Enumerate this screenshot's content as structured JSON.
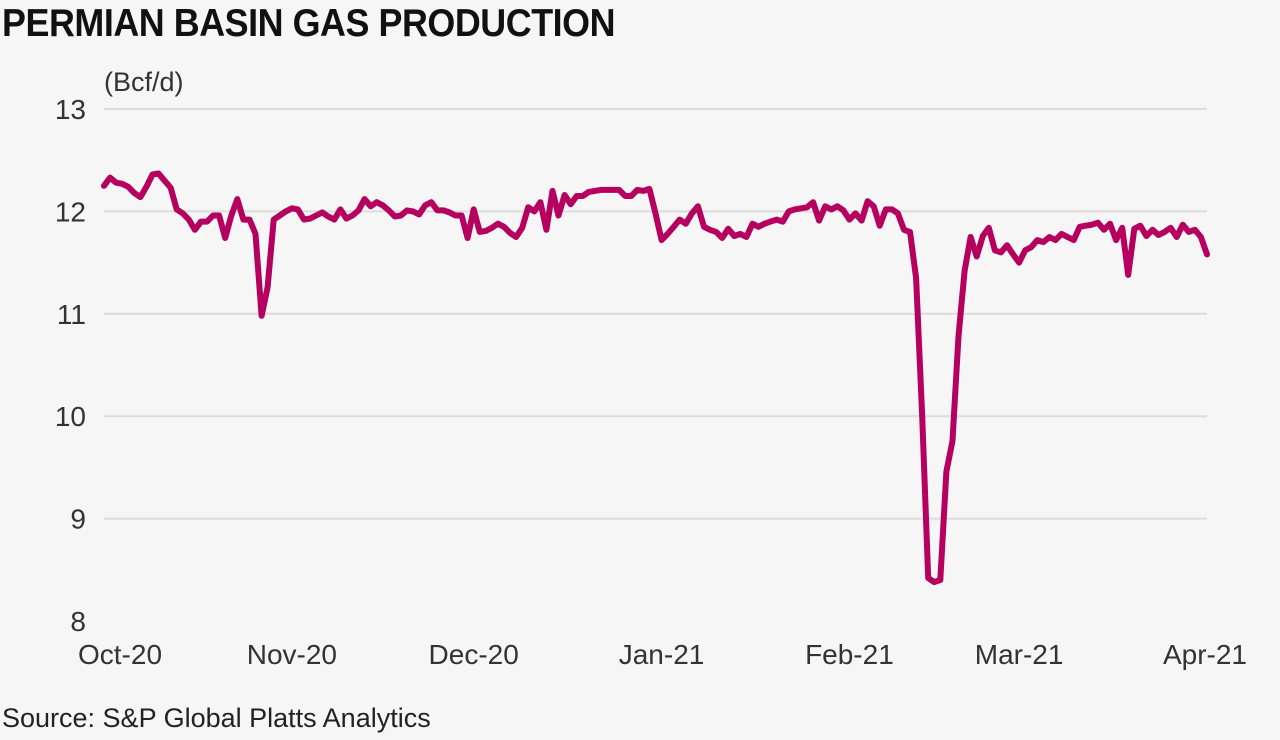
{
  "title": "PERMIAN BASIN GAS PRODUCTION",
  "source": "Source: S&P Global Platts Analytics",
  "colors": {
    "line": "#b5005f",
    "grid": "#dcdcdc",
    "text": "#333333"
  },
  "chart_data": {
    "type": "line",
    "title": "PERMIAN BASIN GAS PRODUCTION",
    "ylabel": "(Bcf/d)",
    "xlabel": "",
    "ylim": [
      8,
      13
    ],
    "yticks": [
      8,
      9,
      10,
      11,
      12,
      13
    ],
    "xlim": [
      "2020-10-01",
      "2021-04-01"
    ],
    "xticks": [
      {
        "label": "Oct-20",
        "date": "2020-10-01"
      },
      {
        "label": "Nov-20",
        "date": "2020-11-01"
      },
      {
        "label": "Dec-20",
        "date": "2020-12-01"
      },
      {
        "label": "Jan-21",
        "date": "2021-01-01"
      },
      {
        "label": "Feb-21",
        "date": "2021-02-01"
      },
      {
        "label": "Mar-21",
        "date": "2021-03-01"
      },
      {
        "label": "Apr-21",
        "date": "2021-04-01"
      }
    ],
    "grid": true,
    "series": [
      {
        "points": [
          [
            "2020-10-01",
            12.25
          ],
          [
            "2020-10-02",
            12.33
          ],
          [
            "2020-10-03",
            12.28
          ],
          [
            "2020-10-04",
            12.27
          ],
          [
            "2020-10-05",
            12.24
          ],
          [
            "2020-10-06",
            12.18
          ],
          [
            "2020-10-07",
            12.14
          ],
          [
            "2020-10-08",
            12.24
          ],
          [
            "2020-10-09",
            12.36
          ],
          [
            "2020-10-10",
            12.37
          ],
          [
            "2020-10-11",
            12.3
          ],
          [
            "2020-10-12",
            12.23
          ],
          [
            "2020-10-13",
            12.02
          ],
          [
            "2020-10-14",
            11.98
          ],
          [
            "2020-10-15",
            11.92
          ],
          [
            "2020-10-16",
            11.82
          ],
          [
            "2020-10-17",
            11.9
          ],
          [
            "2020-10-18",
            11.9
          ],
          [
            "2020-10-19",
            11.96
          ],
          [
            "2020-10-20",
            11.96
          ],
          [
            "2020-10-21",
            11.74
          ],
          [
            "2020-10-22",
            11.96
          ],
          [
            "2020-10-23",
            12.12
          ],
          [
            "2020-10-24",
            11.92
          ],
          [
            "2020-10-25",
            11.92
          ],
          [
            "2020-10-26",
            11.78
          ],
          [
            "2020-10-27",
            10.98
          ],
          [
            "2020-10-28",
            11.26
          ],
          [
            "2020-10-29",
            11.92
          ],
          [
            "2020-10-30",
            11.96
          ],
          [
            "2020-10-31",
            12.0
          ],
          [
            "2020-11-01",
            12.03
          ],
          [
            "2020-11-02",
            12.02
          ],
          [
            "2020-11-03",
            11.92
          ],
          [
            "2020-11-04",
            11.93
          ],
          [
            "2020-11-05",
            11.96
          ],
          [
            "2020-11-06",
            11.99
          ],
          [
            "2020-11-07",
            11.95
          ],
          [
            "2020-11-08",
            11.92
          ],
          [
            "2020-11-09",
            12.02
          ],
          [
            "2020-11-10",
            11.93
          ],
          [
            "2020-11-11",
            11.96
          ],
          [
            "2020-11-12",
            12.01
          ],
          [
            "2020-11-13",
            12.12
          ],
          [
            "2020-11-14",
            12.05
          ],
          [
            "2020-11-15",
            12.09
          ],
          [
            "2020-11-16",
            12.06
          ],
          [
            "2020-11-17",
            12.01
          ],
          [
            "2020-11-18",
            11.95
          ],
          [
            "2020-11-19",
            11.96
          ],
          [
            "2020-11-20",
            12.01
          ],
          [
            "2020-11-21",
            12.0
          ],
          [
            "2020-11-22",
            11.97
          ],
          [
            "2020-11-23",
            12.06
          ],
          [
            "2020-11-24",
            12.09
          ],
          [
            "2020-11-25",
            12.01
          ],
          [
            "2020-11-26",
            12.01
          ],
          [
            "2020-11-27",
            11.99
          ],
          [
            "2020-11-28",
            11.96
          ],
          [
            "2020-11-29",
            11.96
          ],
          [
            "2020-11-30",
            11.74
          ],
          [
            "2020-12-01",
            12.02
          ],
          [
            "2020-12-02",
            11.8
          ],
          [
            "2020-12-03",
            11.81
          ],
          [
            "2020-12-04",
            11.84
          ],
          [
            "2020-12-05",
            11.88
          ],
          [
            "2020-12-06",
            11.85
          ],
          [
            "2020-12-07",
            11.79
          ],
          [
            "2020-12-08",
            11.75
          ],
          [
            "2020-12-09",
            11.84
          ],
          [
            "2020-12-10",
            12.04
          ],
          [
            "2020-12-11",
            12.0
          ],
          [
            "2020-12-12",
            12.09
          ],
          [
            "2020-12-13",
            11.82
          ],
          [
            "2020-12-14",
            12.2
          ],
          [
            "2020-12-15",
            11.96
          ],
          [
            "2020-12-16",
            12.16
          ],
          [
            "2020-12-17",
            12.07
          ],
          [
            "2020-12-18",
            12.15
          ],
          [
            "2020-12-19",
            12.15
          ],
          [
            "2020-12-20",
            12.19
          ],
          [
            "2020-12-21",
            12.2
          ],
          [
            "2020-12-22",
            12.21
          ],
          [
            "2020-12-23",
            12.21
          ],
          [
            "2020-12-24",
            12.21
          ],
          [
            "2020-12-25",
            12.21
          ],
          [
            "2020-12-26",
            12.15
          ],
          [
            "2020-12-27",
            12.15
          ],
          [
            "2020-12-28",
            12.21
          ],
          [
            "2020-12-29",
            12.2
          ],
          [
            "2020-12-30",
            12.22
          ],
          [
            "2020-12-31",
            11.98
          ],
          [
            "2021-01-01",
            11.72
          ],
          [
            "2021-01-02",
            11.78
          ],
          [
            "2021-01-03",
            11.85
          ],
          [
            "2021-01-04",
            11.92
          ],
          [
            "2021-01-05",
            11.88
          ],
          [
            "2021-01-06",
            11.98
          ],
          [
            "2021-01-07",
            12.05
          ],
          [
            "2021-01-08",
            11.85
          ],
          [
            "2021-01-09",
            11.82
          ],
          [
            "2021-01-10",
            11.8
          ],
          [
            "2021-01-11",
            11.74
          ],
          [
            "2021-01-12",
            11.83
          ],
          [
            "2021-01-13",
            11.76
          ],
          [
            "2021-01-14",
            11.78
          ],
          [
            "2021-01-15",
            11.75
          ],
          [
            "2021-01-16",
            11.88
          ],
          [
            "2021-01-17",
            11.85
          ],
          [
            "2021-01-18",
            11.88
          ],
          [
            "2021-01-19",
            11.9
          ],
          [
            "2021-01-20",
            11.92
          ],
          [
            "2021-01-21",
            11.9
          ],
          [
            "2021-01-22",
            12.0
          ],
          [
            "2021-01-23",
            12.02
          ],
          [
            "2021-01-24",
            12.03
          ],
          [
            "2021-01-25",
            12.04
          ],
          [
            "2021-01-26",
            12.09
          ],
          [
            "2021-01-27",
            11.91
          ],
          [
            "2021-01-28",
            12.05
          ],
          [
            "2021-01-29",
            12.02
          ],
          [
            "2021-01-30",
            12.05
          ],
          [
            "2021-01-31",
            12.01
          ],
          [
            "2021-02-01",
            11.92
          ],
          [
            "2021-02-02",
            11.98
          ],
          [
            "2021-02-03",
            11.91
          ],
          [
            "2021-02-04",
            12.1
          ],
          [
            "2021-02-05",
            12.05
          ],
          [
            "2021-02-06",
            11.86
          ],
          [
            "2021-02-07",
            12.02
          ],
          [
            "2021-02-08",
            12.02
          ],
          [
            "2021-02-09",
            11.98
          ],
          [
            "2021-02-10",
            11.82
          ],
          [
            "2021-02-11",
            11.8
          ],
          [
            "2021-02-12",
            11.35
          ],
          [
            "2021-02-13",
            10.0
          ],
          [
            "2021-02-14",
            8.42
          ],
          [
            "2021-02-15",
            8.38
          ],
          [
            "2021-02-16",
            8.4
          ],
          [
            "2021-02-17",
            9.46
          ],
          [
            "2021-02-18",
            9.76
          ],
          [
            "2021-02-19",
            10.78
          ],
          [
            "2021-02-20",
            11.42
          ],
          [
            "2021-02-21",
            11.75
          ],
          [
            "2021-02-22",
            11.56
          ],
          [
            "2021-02-23",
            11.76
          ],
          [
            "2021-02-24",
            11.84
          ],
          [
            "2021-02-25",
            11.62
          ],
          [
            "2021-02-26",
            11.6
          ],
          [
            "2021-02-27",
            11.67
          ],
          [
            "2021-02-28",
            11.58
          ],
          [
            "2021-03-01",
            11.5
          ],
          [
            "2021-03-02",
            11.62
          ],
          [
            "2021-03-03",
            11.65
          ],
          [
            "2021-03-04",
            11.72
          ],
          [
            "2021-03-05",
            11.7
          ],
          [
            "2021-03-06",
            11.75
          ],
          [
            "2021-03-07",
            11.72
          ],
          [
            "2021-03-08",
            11.78
          ],
          [
            "2021-03-09",
            11.75
          ],
          [
            "2021-03-10",
            11.72
          ],
          [
            "2021-03-11",
            11.85
          ],
          [
            "2021-03-12",
            11.86
          ],
          [
            "2021-03-13",
            11.87
          ],
          [
            "2021-03-14",
            11.89
          ],
          [
            "2021-03-15",
            11.82
          ],
          [
            "2021-03-16",
            11.88
          ],
          [
            "2021-03-17",
            11.72
          ],
          [
            "2021-03-18",
            11.84
          ],
          [
            "2021-03-19",
            11.38
          ],
          [
            "2021-03-20",
            11.83
          ],
          [
            "2021-03-21",
            11.86
          ],
          [
            "2021-03-22",
            11.76
          ],
          [
            "2021-03-23",
            11.82
          ],
          [
            "2021-03-24",
            11.77
          ],
          [
            "2021-03-25",
            11.8
          ],
          [
            "2021-03-26",
            11.84
          ],
          [
            "2021-03-27",
            11.75
          ],
          [
            "2021-03-28",
            11.87
          ],
          [
            "2021-03-29",
            11.8
          ],
          [
            "2021-03-30",
            11.82
          ],
          [
            "2021-03-31",
            11.75
          ]
        ]
      }
    ],
    "series_tail": [
      [
        "2021-04-01",
        11.58
      ]
    ]
  }
}
